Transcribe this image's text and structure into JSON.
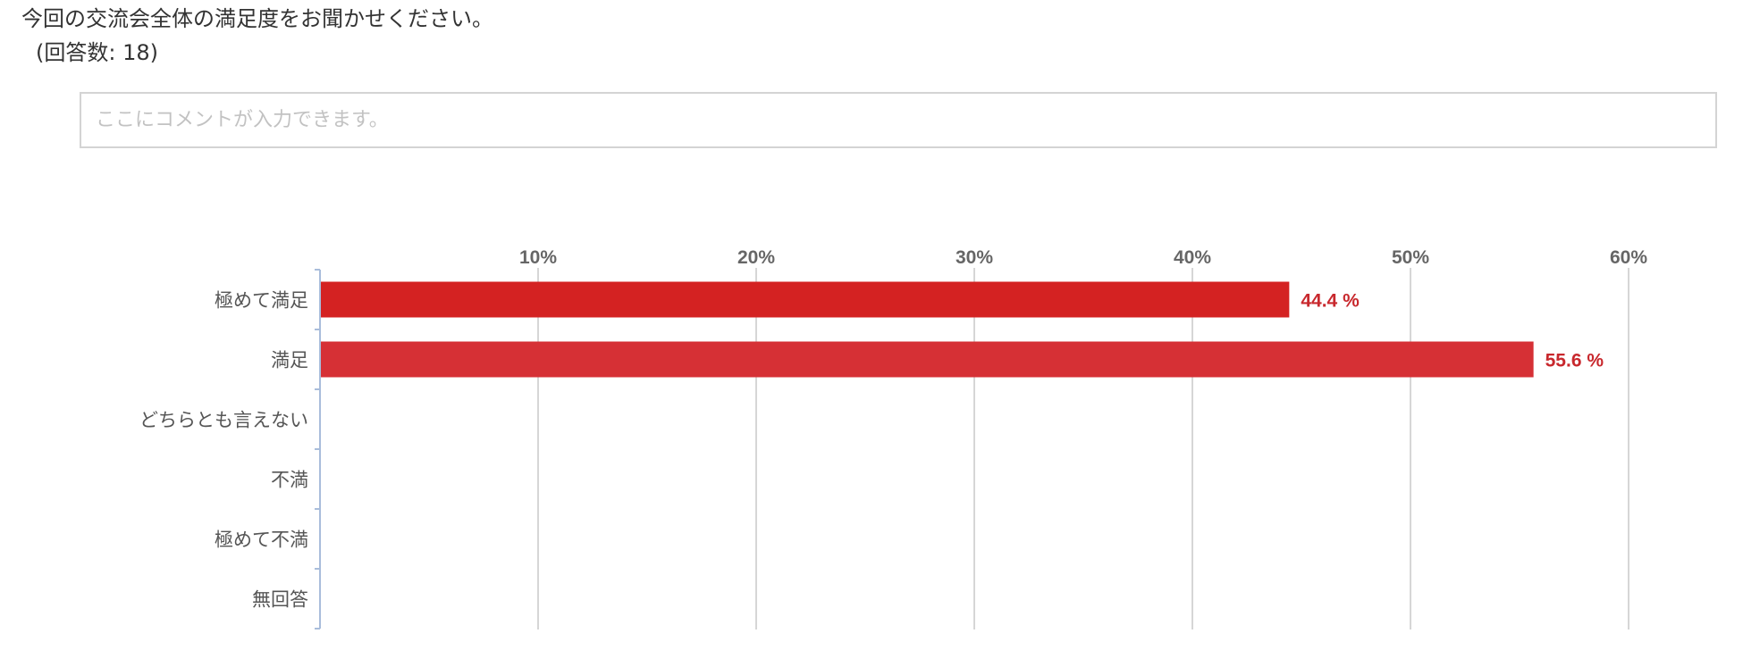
{
  "question": {
    "text": "今回の交流会全体の満足度をお聞かせください。",
    "response_count": "(回答数: 18)"
  },
  "comment": {
    "placeholder": "ここにコメントが入力できます。"
  },
  "colors": {
    "bar_primary": "#d42222",
    "bar_secondary": "#d63035",
    "label": "#c8282d",
    "grid": "#c8c8c8",
    "axis": "#a9bddb"
  },
  "chart_data": {
    "type": "bar",
    "orientation": "horizontal",
    "title": "",
    "xlabel": "",
    "ylabel": "",
    "xlim": [
      0,
      60
    ],
    "ticks": [
      10,
      20,
      30,
      40,
      50,
      60
    ],
    "tick_labels": [
      "10%",
      "20%",
      "30%",
      "40%",
      "50%",
      "60%"
    ],
    "tick_position": "top",
    "grid": true,
    "categories": [
      "極めて満足",
      "満足",
      "どちらとも言えない",
      "不満",
      "極めて不満",
      "無回答"
    ],
    "values": [
      44.4,
      55.6,
      0,
      0,
      0,
      0
    ],
    "data_labels": [
      "44.4 %",
      "55.6 %",
      "",
      "",
      "",
      ""
    ]
  }
}
